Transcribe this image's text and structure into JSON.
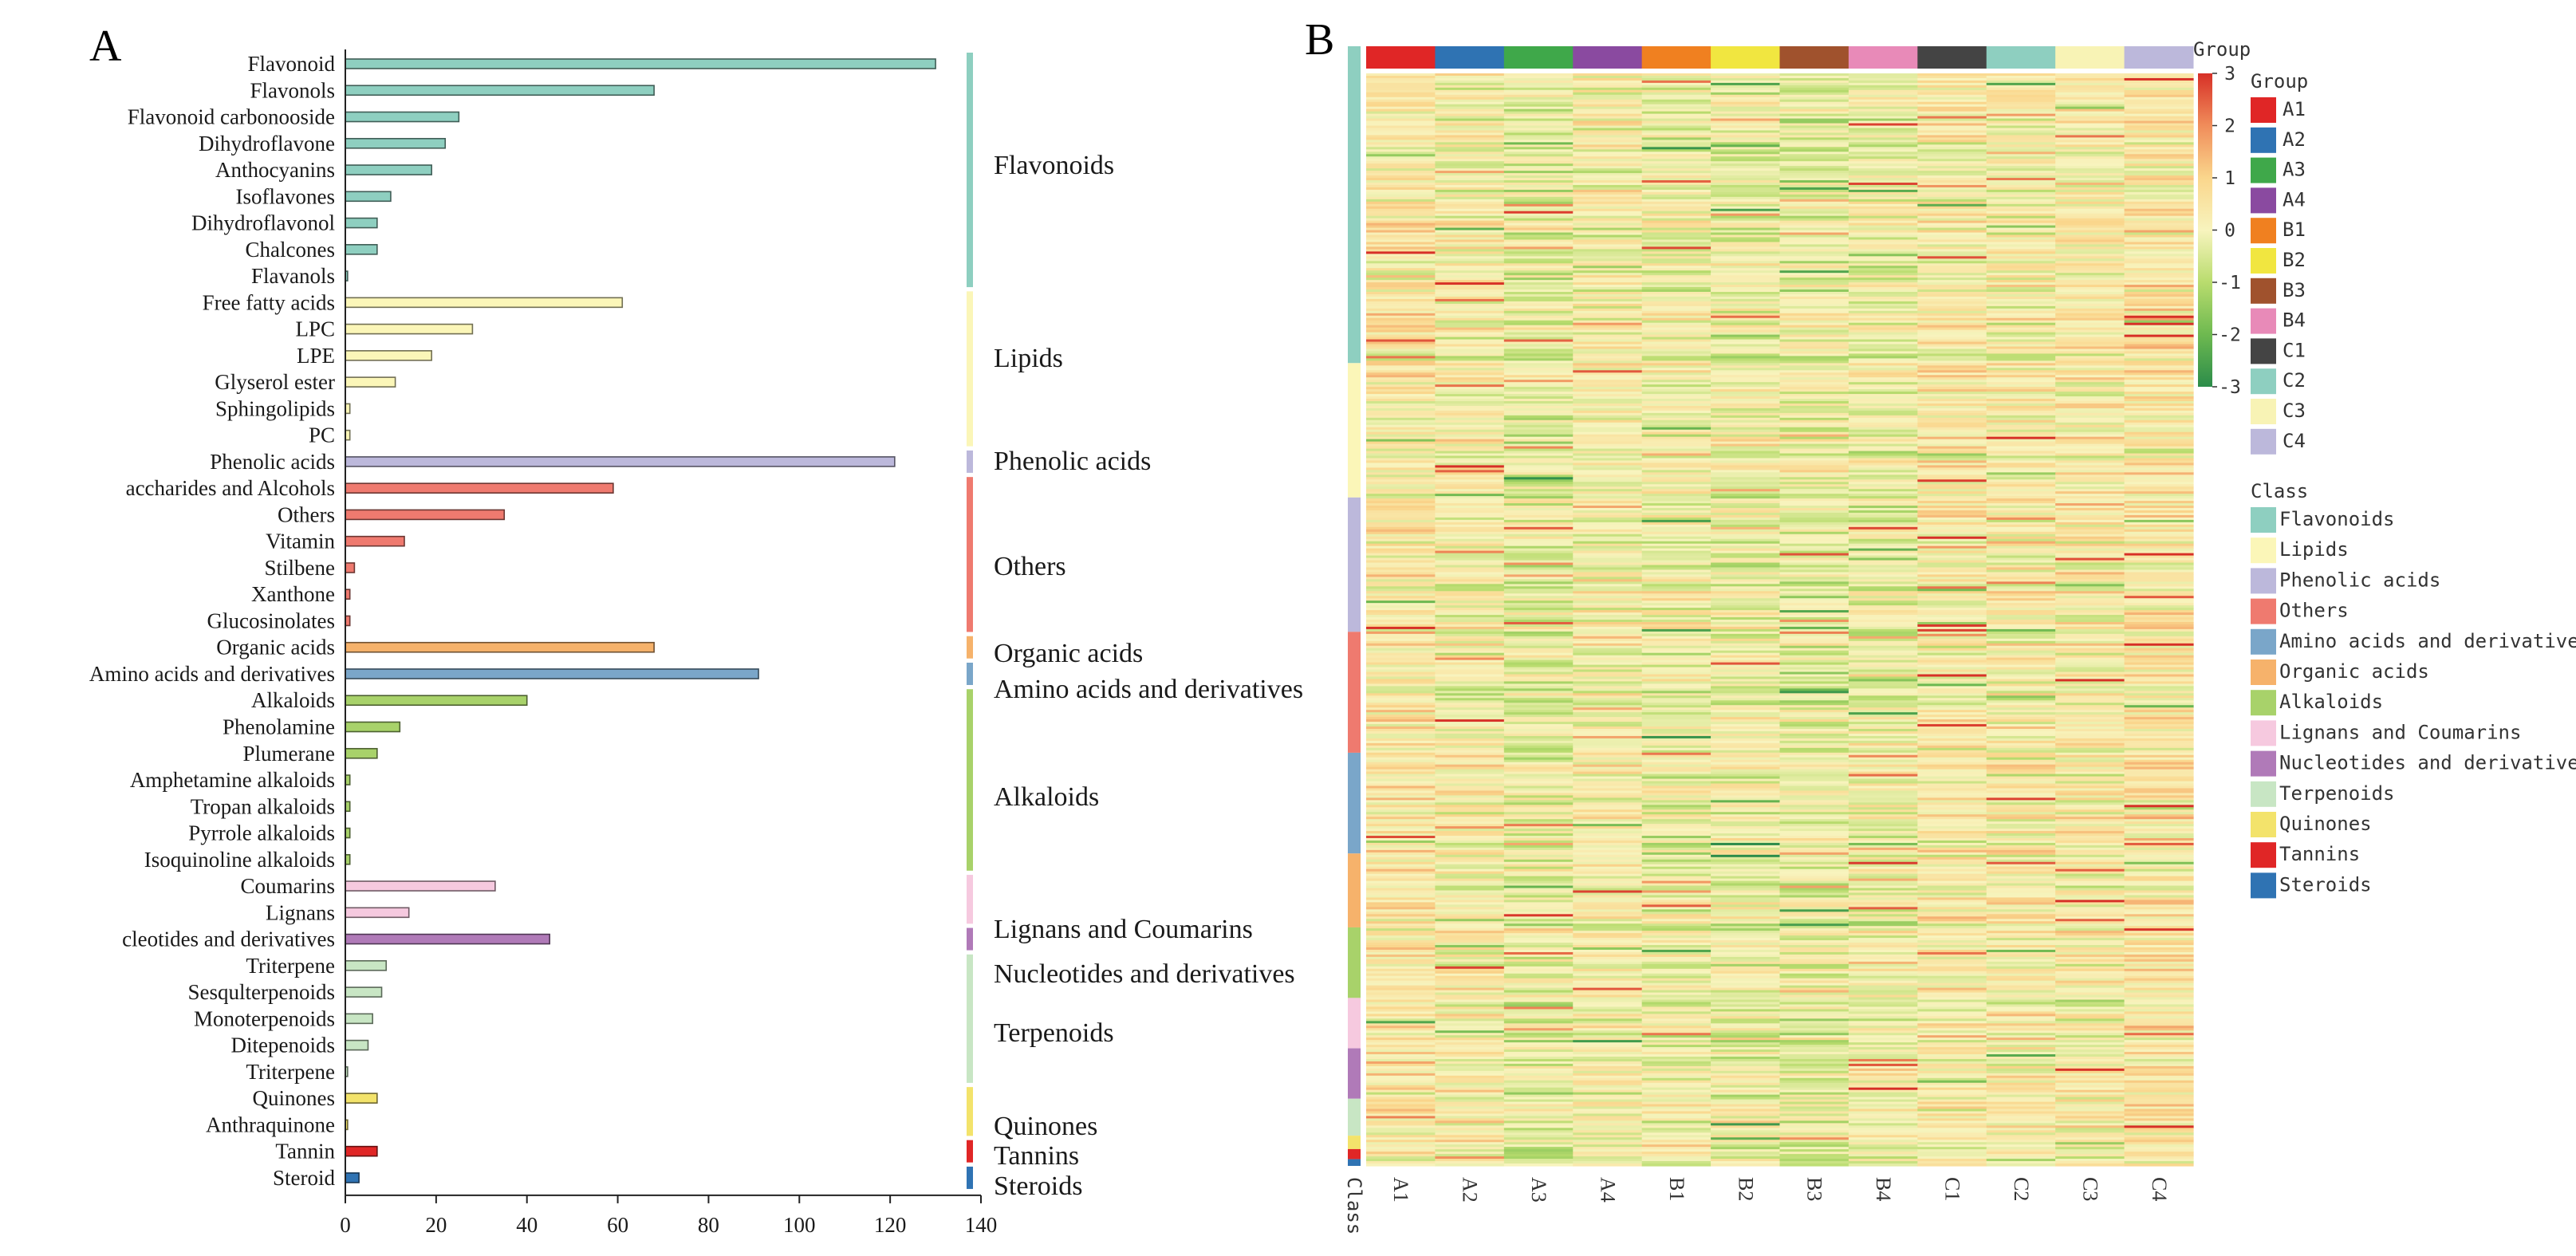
{
  "chart_data": [
    {
      "panel": "A",
      "type": "bar",
      "orientation": "horizontal",
      "xlim": [
        0,
        140
      ],
      "xticks": [
        0,
        20,
        40,
        60,
        80,
        100,
        120,
        140
      ],
      "grid": false,
      "categories": [
        "Flavonoid",
        "Flavonols",
        "Flavonoid carbonooside",
        "Dihydroflavone",
        "Anthocyanins",
        "Isoflavones",
        "Dihydroflavonol",
        "Chalcones",
        "Flavanols",
        "Free fatty acids",
        "LPC",
        "LPE",
        "Glyserol ester",
        "Sphingolipids",
        "PC",
        "Phenolic acids",
        "accharides and Alcohols",
        "Others",
        "Vitamin",
        "Stilbene",
        "Xanthone",
        "Glucosinolates",
        "Organic acids",
        "Amino acids and derivatives",
        "Alkaloids",
        "Phenolamine",
        "Plumerane",
        "Amphetamine alkaloids",
        "Tropan alkaloids",
        "Pyrrole alkaloids",
        "Isoquinoline alkaloids",
        "Coumarins",
        "Lignans",
        "cleotides and derivatives",
        "Triterpene",
        "Sesqulterpenoids",
        "Monoterpenoids",
        "Ditepenoids",
        "Triterpene",
        "Quinones",
        "Anthraquinone",
        "Tannin",
        "Steroid"
      ],
      "values": [
        130,
        68,
        25,
        22,
        19,
        10,
        7,
        7,
        0.5,
        61,
        28,
        19,
        11,
        1,
        1,
        121,
        59,
        35,
        13,
        2,
        1,
        1,
        68,
        91,
        40,
        12,
        7,
        1,
        1,
        1,
        1,
        33,
        14,
        45,
        9,
        8,
        6,
        5,
        0.5,
        7,
        0.5,
        7,
        3
      ],
      "class_of_category": [
        0,
        0,
        0,
        0,
        0,
        0,
        0,
        0,
        0,
        1,
        1,
        1,
        1,
        1,
        1,
        2,
        3,
        3,
        3,
        3,
        3,
        3,
        5,
        4,
        6,
        6,
        6,
        6,
        6,
        6,
        6,
        7,
        7,
        8,
        9,
        9,
        9,
        9,
        9,
        10,
        10,
        11,
        12
      ],
      "class_labels": [
        "Flavonoids",
        "Lipids",
        "Phenolic acids",
        "Others",
        "Amino acids and derivatives",
        "Organic acids",
        "Alkaloids",
        "Lignans and Coumarins",
        "Nucleotides and derivatives",
        "Terpenoids",
        "Quinones",
        "Tannins",
        "Steroids"
      ],
      "bracket_labels": [
        {
          "label": "Flavonoids",
          "cls": 0
        },
        {
          "label": "Lipids",
          "cls": 1
        },
        {
          "label": "Phenolic acids",
          "cls": 2
        },
        {
          "label": "Others",
          "cls": 3
        },
        {
          "label": "Organic acids",
          "cls": 5
        },
        {
          "label": "Amino acids and derivatives",
          "cls": 4
        },
        {
          "label": "Alkaloids",
          "cls": 6
        },
        {
          "label": "Lignans and Coumarins",
          "cls": 7
        },
        {
          "label": "Nucleotides and derivatives",
          "cls": 8
        },
        {
          "label": "Terpenoids",
          "cls": 9
        },
        {
          "label": "Quinones",
          "cls": 10
        },
        {
          "label": "Tannins",
          "cls": 11
        },
        {
          "label": "Steroids",
          "cls": 12
        }
      ]
    },
    {
      "panel": "B",
      "type": "heatmap",
      "columns": [
        "A1",
        "A2",
        "A3",
        "A4",
        "B1",
        "B2",
        "B3",
        "B4",
        "C1",
        "C2",
        "C3",
        "C4"
      ],
      "color_scale": {
        "min": -3,
        "max": 3,
        "ticks": [
          3,
          2,
          1,
          0,
          -1,
          -2,
          -3
        ]
      },
      "group_title": "Group",
      "class_title": "Class",
      "class_bar_label": "Class",
      "class_order": [
        "Flavonoids",
        "Lipids",
        "Phenolic acids",
        "Others",
        "Amino acids and derivatives",
        "Organic acids",
        "Alkaloids",
        "Lignans and Coumarins",
        "Nucleotides and derivatives",
        "Terpenoids",
        "Quinones",
        "Tannins",
        "Steroids"
      ],
      "class_row_fractions": [
        0.283,
        0.12,
        0.12,
        0.108,
        0.09,
        0.066,
        0.063,
        0.045,
        0.045,
        0.033,
        0.012,
        0.009,
        0.006
      ]
    }
  ],
  "panel_labels": {
    "a": "A",
    "b": "B"
  },
  "colors": {
    "Flavonoids": "#8ecfc0",
    "Lipids": "#fbf6b8",
    "Phenolic acids": "#bcb8db",
    "Others": "#ef7a6f",
    "Amino acids and derivatives": "#7aa6c9",
    "Organic acids": "#f6b26b",
    "Alkaloids": "#a8d26a",
    "Lignans and Coumarins": "#f6c9df",
    "Nucleotides and derivatives": "#b07ab8",
    "Terpenoids": "#c8e6c4",
    "Quinones": "#f3e36b",
    "Tannins": "#e02626",
    "Steroids": "#2f73b3",
    "group": {
      "A1": "#e02626",
      "A2": "#2f73b3",
      "A3": "#3fa84a",
      "A4": "#8a4aa0",
      "B1": "#f08020",
      "B2": "#f1e640",
      "B3": "#a0522d",
      "B4": "#e88ab8",
      "C1": "#444444",
      "C2": "#8ecfc0",
      "C3": "#f8f3b5",
      "C4": "#bcb8db"
    }
  }
}
